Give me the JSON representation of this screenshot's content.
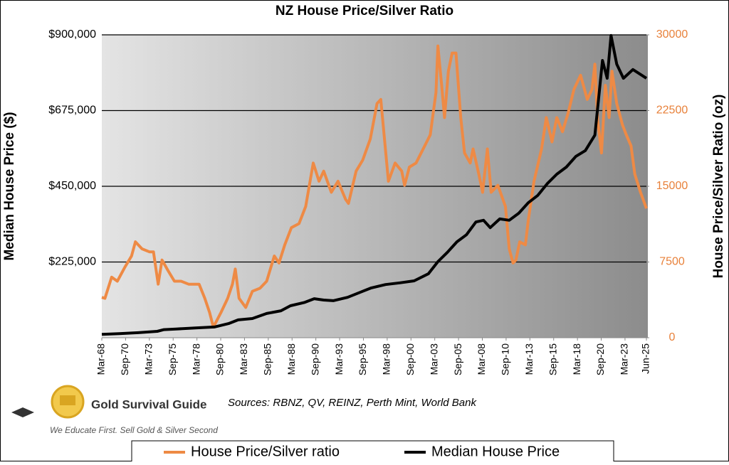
{
  "chart_data": {
    "type": "line",
    "title": "NZ House Price/Silver Ratio",
    "ylabel": "Median House Price ($)",
    "y2label": "House Price/Silver Ratio (oz)",
    "source": "Sources: RBNZ, QV, REINZ, Perth Mint, World Bank",
    "brand": "Gold Survival Guide",
    "tagline": "We Educate First. Sell Gold & Silver Second",
    "xlim": [
      1968.17,
      2025.42
    ],
    "xticks": [
      {
        "value": 1968.17,
        "label": "Mar-68"
      },
      {
        "value": 1970.67,
        "label": "Sep-70"
      },
      {
        "value": 1973.17,
        "label": "Mar-73"
      },
      {
        "value": 1975.67,
        "label": "Sep-75"
      },
      {
        "value": 1978.17,
        "label": "Mar-78"
      },
      {
        "value": 1980.67,
        "label": "Sep-80"
      },
      {
        "value": 1983.17,
        "label": "Mar-83"
      },
      {
        "value": 1985.67,
        "label": "Sep-85"
      },
      {
        "value": 1988.17,
        "label": "Mar-88"
      },
      {
        "value": 1990.67,
        "label": "Sep-90"
      },
      {
        "value": 1993.17,
        "label": "Mar-93"
      },
      {
        "value": 1995.67,
        "label": "Sep-95"
      },
      {
        "value": 1998.17,
        "label": "Mar-98"
      },
      {
        "value": 2000.67,
        "label": "Sep-00"
      },
      {
        "value": 2003.17,
        "label": "Mar-03"
      },
      {
        "value": 2005.67,
        "label": "Sep-05"
      },
      {
        "value": 2008.17,
        "label": "Mar-08"
      },
      {
        "value": 2010.67,
        "label": "Sep-10"
      },
      {
        "value": 2013.17,
        "label": "Mar-13"
      },
      {
        "value": 2015.67,
        "label": "Sep-15"
      },
      {
        "value": 2018.17,
        "label": "Mar-18"
      },
      {
        "value": 2020.67,
        "label": "Sep-20"
      },
      {
        "value": 2023.17,
        "label": "Mar-23"
      },
      {
        "value": 2025.42,
        "label": "Jun-25"
      }
    ],
    "ylim": [
      0,
      900000
    ],
    "yticks": [
      {
        "value": 225000,
        "label": "$225,000"
      },
      {
        "value": 450000,
        "label": "$450,000"
      },
      {
        "value": 675000,
        "label": "$675,000"
      },
      {
        "value": 900000,
        "label": "$900,000"
      }
    ],
    "y2lim": [
      0,
      30000
    ],
    "y2ticks": [
      0,
      7500,
      15000,
      22500,
      30000
    ],
    "y2color": "#e8813a",
    "grid": true,
    "series": [
      {
        "name": "House Price/Silver ratio",
        "color": "#ee8a45",
        "axis": "y2",
        "x": [
          1968.17,
          1968.5,
          1969.2,
          1969.8,
          1970.6,
          1971.3,
          1971.7,
          1972.4,
          1973.2,
          1973.6,
          1974.1,
          1974.5,
          1975.1,
          1975.8,
          1976.5,
          1977.3,
          1978.4,
          1979.0,
          1979.5,
          1979.9,
          1980.7,
          1981.4,
          1981.9,
          1982.2,
          1982.6,
          1983.3,
          1984.0,
          1984.8,
          1985.5,
          1986.3,
          1986.8,
          1987.4,
          1988.1,
          1988.9,
          1989.6,
          1990.4,
          1991.0,
          1991.5,
          1992.3,
          1993.0,
          1993.8,
          1994.1,
          1994.9,
          1995.6,
          1996.4,
          1997.1,
          1997.5,
          1998.3,
          1999.0,
          1999.7,
          2000.0,
          2000.5,
          2001.2,
          2002.7,
          2003.3,
          2003.5,
          2003.9,
          2004.2,
          2004.6,
          2005.0,
          2005.4,
          2005.9,
          2006.3,
          2006.9,
          2007.2,
          2007.8,
          2008.2,
          2008.7,
          2009.1,
          2009.8,
          2010.6,
          2011.0,
          2011.4,
          2011.7,
          2012.1,
          2012.7,
          2013.0,
          2013.6,
          2014.4,
          2014.9,
          2015.5,
          2016.0,
          2016.6,
          2017.2,
          2017.8,
          2018.5,
          2019.2,
          2019.7,
          2020.0,
          2020.3,
          2020.7,
          2021.1,
          2021.5,
          2021.8,
          2022.3,
          2022.9,
          2023.3,
          2023.8,
          2024.2,
          2024.8,
          2025.42
        ],
        "values": [
          4000,
          3900,
          6000,
          5600,
          7000,
          8100,
          9500,
          8800,
          8500,
          8500,
          5300,
          7700,
          6700,
          5600,
          5600,
          5300,
          5300,
          3900,
          2500,
          1050,
          2500,
          3900,
          5300,
          6800,
          3900,
          3000,
          4600,
          4900,
          5600,
          8100,
          7400,
          9200,
          10900,
          11300,
          13000,
          17300,
          15500,
          16500,
          14400,
          15500,
          13700,
          13300,
          16500,
          17600,
          19700,
          23200,
          23600,
          15500,
          17300,
          16500,
          15100,
          16900,
          17300,
          20100,
          24300,
          28900,
          25000,
          21800,
          26400,
          28200,
          28200,
          21800,
          18300,
          17300,
          18700,
          16200,
          14400,
          18700,
          14400,
          15100,
          13000,
          8800,
          7400,
          7700,
          9500,
          9200,
          11600,
          15500,
          18700,
          21800,
          19400,
          21800,
          20400,
          22300,
          24600,
          26000,
          23600,
          24600,
          27100,
          21500,
          18300,
          25000,
          21800,
          26400,
          23200,
          21100,
          20100,
          19000,
          16200,
          14400,
          12800
        ]
      },
      {
        "name": "Median House Price",
        "color": "#000000",
        "axis": "y",
        "x": [
          1968.17,
          1970,
          1972,
          1974,
          1974.7,
          1976,
          1978,
          1980,
          1981.5,
          1982.5,
          1984,
          1985.5,
          1987,
          1988,
          1989.5,
          1990.5,
          1991.5,
          1992.5,
          1994,
          1995.5,
          1996.5,
          1998,
          1999.5,
          2001,
          2002.5,
          2003.5,
          2004.5,
          2005.5,
          2006.5,
          2007.5,
          2008.3,
          2009,
          2010,
          2011,
          2012,
          2013,
          2014,
          2015,
          2016,
          2017,
          2018,
          2019,
          2020,
          2020.8,
          2021.3,
          2021.7,
          2022.3,
          2023,
          2024,
          2025.42
        ],
        "values": [
          10000,
          12000,
          15000,
          19000,
          24000,
          26000,
          29000,
          32000,
          42000,
          53000,
          57000,
          72000,
          80000,
          95000,
          105000,
          116000,
          112000,
          110000,
          120000,
          137000,
          148000,
          158000,
          163000,
          169000,
          190000,
          226000,
          254000,
          285000,
          306000,
          344000,
          349000,
          327000,
          353000,
          349000,
          370000,
          401000,
          423000,
          458000,
          486000,
          507000,
          539000,
          556000,
          602000,
          824000,
          771000,
          898000,
          813000,
          771000,
          797000,
          771000
        ]
      }
    ]
  }
}
